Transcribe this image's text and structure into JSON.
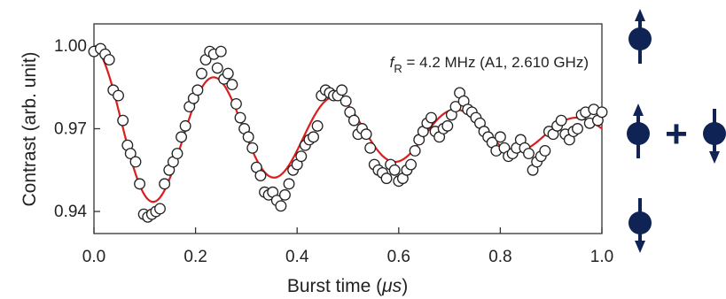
{
  "chart_data": {
    "type": "scatter",
    "xlabel_prefix": "Burst time (",
    "xlabel_unit": "μs",
    "xlabel_suffix": ")",
    "ylabel": "Contrast (arb. unit)",
    "xlim": [
      0.0,
      1.0
    ],
    "ylim": [
      0.932,
      1.008
    ],
    "xticks": [
      0.0,
      0.2,
      0.4,
      0.6,
      0.8,
      1.0
    ],
    "xtick_labels": [
      "0.0",
      "0.2",
      "0.4",
      "0.6",
      "0.8",
      "1.0"
    ],
    "yticks": [
      0.94,
      0.97,
      1.0
    ],
    "ytick_labels": [
      "0.94",
      "0.97",
      "1.00"
    ],
    "annotation": {
      "f_symbol": "f",
      "f_subscript": "R",
      "text": " = 4.2 MHz (A1, 2.610 GHz)"
    },
    "fit_color": "#dd1c1c",
    "marker_style": "open-circle",
    "fit": {
      "offset": 0.9685,
      "amplitude": 0.031,
      "decay_us": 0.55,
      "frequency_MHz": 4.2
    },
    "series": [
      {
        "style": "open-circle",
        "x": [
          0.0,
          0.013,
          0.022,
          0.03,
          0.038,
          0.048,
          0.057,
          0.066,
          0.072,
          0.082,
          0.09,
          0.098,
          0.106,
          0.114,
          0.122,
          0.13,
          0.139,
          0.148,
          0.156,
          0.164,
          0.172,
          0.18,
          0.188,
          0.196,
          0.204,
          0.212,
          0.22,
          0.228,
          0.236,
          0.243,
          0.25,
          0.256,
          0.264,
          0.272,
          0.28,
          0.288,
          0.296,
          0.304,
          0.312,
          0.32,
          0.328,
          0.336,
          0.344,
          0.352,
          0.36,
          0.368,
          0.376,
          0.384,
          0.392,
          0.4,
          0.408,
          0.416,
          0.424,
          0.432,
          0.44,
          0.448,
          0.456,
          0.464,
          0.472,
          0.48,
          0.488,
          0.496,
          0.504,
          0.512,
          0.52,
          0.528,
          0.536,
          0.544,
          0.552,
          0.56,
          0.568,
          0.576,
          0.584,
          0.592,
          0.6,
          0.608,
          0.616,
          0.624,
          0.632,
          0.64,
          0.648,
          0.656,
          0.664,
          0.672,
          0.68,
          0.688,
          0.696,
          0.704,
          0.712,
          0.72,
          0.728,
          0.736,
          0.744,
          0.752,
          0.76,
          0.768,
          0.776,
          0.784,
          0.792,
          0.8,
          0.808,
          0.816,
          0.824,
          0.832,
          0.84,
          0.848,
          0.856,
          0.864,
          0.872,
          0.88,
          0.888,
          0.896,
          0.904,
          0.912,
          0.92,
          0.928,
          0.936,
          0.944,
          0.952,
          0.96,
          0.968,
          0.976,
          0.984,
          0.992,
          1.0
        ],
        "y": [
          0.998,
          0.999,
          0.997,
          0.995,
          0.984,
          0.982,
          0.973,
          0.964,
          0.961,
          0.958,
          0.95,
          0.939,
          0.938,
          0.939,
          0.94,
          0.941,
          0.95,
          0.955,
          0.958,
          0.961,
          0.967,
          0.971,
          0.978,
          0.981,
          0.984,
          0.99,
          0.995,
          0.998,
          0.997,
          0.992,
          0.998,
          0.988,
          0.99,
          0.986,
          0.979,
          0.974,
          0.97,
          0.967,
          0.963,
          0.956,
          0.953,
          0.947,
          0.946,
          0.947,
          0.944,
          0.942,
          0.946,
          0.95,
          0.955,
          0.957,
          0.96,
          0.964,
          0.966,
          0.967,
          0.971,
          0.982,
          0.984,
          0.983,
          0.982,
          0.982,
          0.984,
          0.98,
          0.976,
          0.973,
          0.968,
          0.97,
          0.968,
          0.963,
          0.957,
          0.955,
          0.954,
          0.952,
          0.957,
          0.955,
          0.951,
          0.952,
          0.955,
          0.957,
          0.962,
          0.966,
          0.969,
          0.972,
          0.974,
          0.969,
          0.967,
          0.97,
          0.971,
          0.975,
          0.978,
          0.983,
          0.98,
          0.977,
          0.976,
          0.974,
          0.972,
          0.969,
          0.967,
          0.965,
          0.962,
          0.967,
          0.963,
          0.96,
          0.961,
          0.963,
          0.966,
          0.963,
          0.961,
          0.955,
          0.958,
          0.96,
          0.962,
          0.969,
          0.968,
          0.971,
          0.973,
          0.968,
          0.966,
          0.969,
          0.97,
          0.975,
          0.976,
          0.972,
          0.977,
          0.973,
          0.976
        ]
      }
    ]
  },
  "inset": {
    "top_icon": "spin-up-icon",
    "middle_icons": [
      "spin-up-icon",
      "plus-sign",
      "spin-down-icon"
    ],
    "plus_text": "+",
    "bottom_icon": "spin-down-icon",
    "color": "#0f2354"
  }
}
